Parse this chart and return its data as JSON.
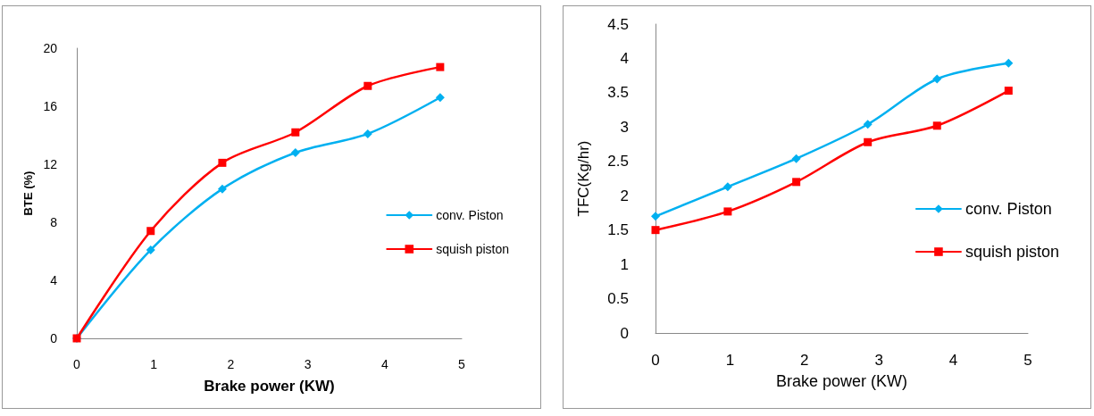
{
  "chart_data": [
    {
      "type": "line",
      "xlabel": "Brake power (KW)",
      "ylabel": "BTE (%)",
      "xlim": [
        0,
        5
      ],
      "xticks": [
        0,
        1,
        2,
        3,
        4,
        5
      ],
      "ylim": [
        0,
        20
      ],
      "yticks": [
        0,
        4,
        8,
        12,
        16,
        20
      ],
      "grid": false,
      "legend": "right",
      "line_style": "solid",
      "series": [
        {
          "name": "conv. Piston",
          "color": "#00b0f0",
          "marker": "diamond",
          "x": [
            0,
            0.96,
            1.89,
            2.84,
            3.78,
            4.72
          ],
          "values": [
            0,
            6.1,
            10.3,
            12.8,
            14.1,
            16.6
          ]
        },
        {
          "name": "squish piston",
          "color": "#ff0000",
          "marker": "square",
          "x": [
            0,
            0.96,
            1.89,
            2.84,
            3.78,
            4.72
          ],
          "values": [
            0,
            7.4,
            12.1,
            14.2,
            17.4,
            18.7
          ]
        }
      ]
    },
    {
      "type": "line",
      "xlabel": "Brake power (KW)",
      "ylabel": "TFC(Kg/hr)",
      "xlim": [
        0,
        5
      ],
      "xticks": [
        0,
        1,
        2,
        3,
        4,
        5
      ],
      "ylim": [
        0,
        4.5
      ],
      "yticks": [
        0,
        0.5,
        1,
        1.5,
        2,
        2.5,
        3,
        3.5,
        4,
        4.5
      ],
      "grid": false,
      "legend": "right",
      "line_style": "solid",
      "series": [
        {
          "name": "conv. Piston",
          "color": "#00b0f0",
          "marker": "diamond",
          "x": [
            0,
            0.97,
            1.89,
            2.85,
            3.78,
            4.74
          ],
          "values": [
            1.7,
            2.13,
            2.54,
            3.04,
            3.7,
            3.93
          ]
        },
        {
          "name": "squish piston",
          "color": "#ff0000",
          "marker": "square",
          "x": [
            0,
            0.97,
            1.89,
            2.85,
            3.78,
            4.74
          ],
          "values": [
            1.5,
            1.77,
            2.2,
            2.78,
            3.02,
            3.53
          ]
        }
      ]
    }
  ]
}
